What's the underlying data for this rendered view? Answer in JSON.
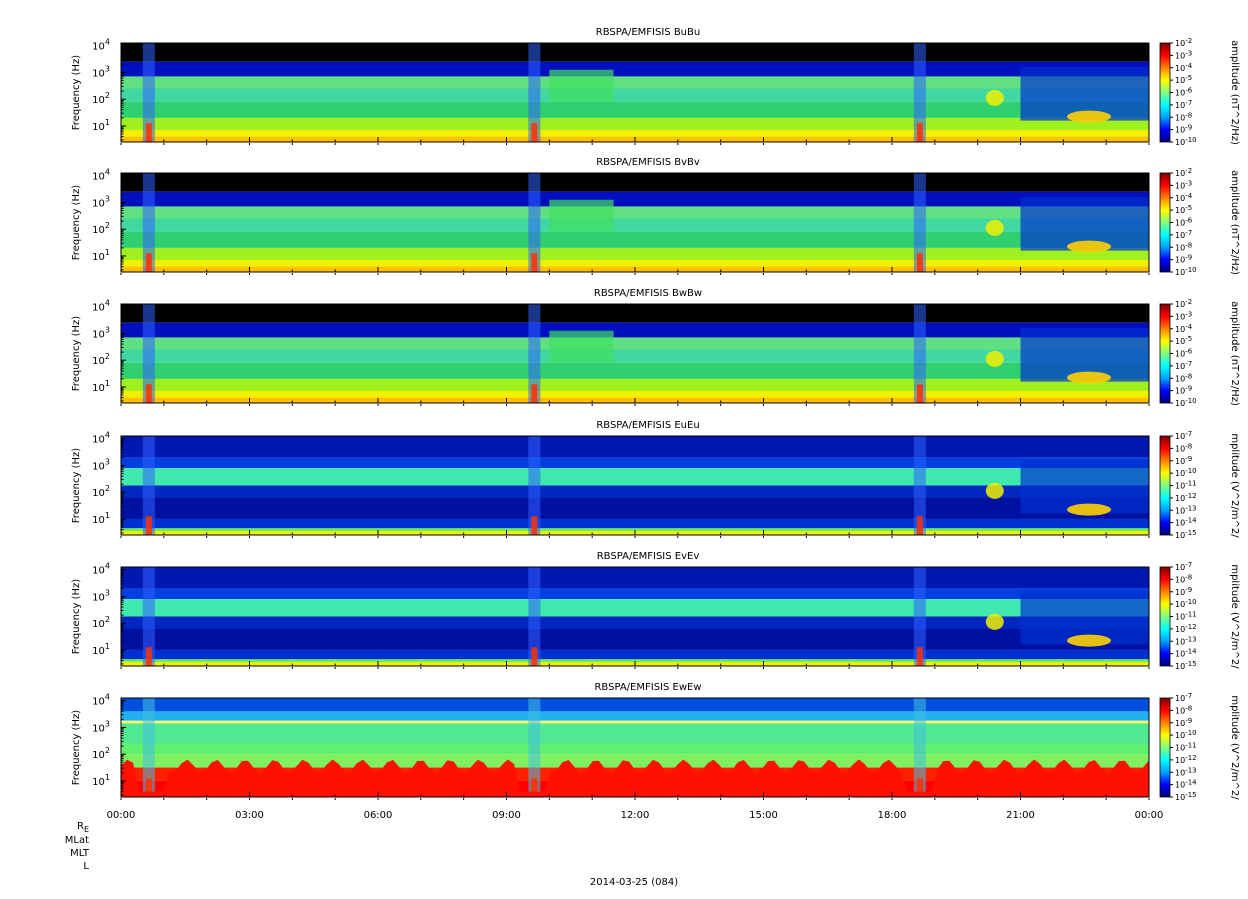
{
  "chart_data": [
    {
      "type": "heatmap",
      "title": "RBSPA/EMFISIS  BuBu",
      "ylabel": "Frequency (Hz)",
      "yscale": "log",
      "yticks": [
        "10",
        "10",
        "10",
        "10"
      ],
      "ytick_exponents": [
        "1",
        "2",
        "3",
        "4"
      ],
      "colorbar_label": "amplitude (nT^2/Hz)",
      "colorbar_ticks": [
        "10",
        "10",
        "10",
        "10",
        "10",
        "10",
        "10",
        "10",
        "10"
      ],
      "colorbar_exponents": [
        "-2",
        "-3",
        "-4",
        "-5",
        "-6",
        "-7",
        "-8",
        "-9",
        "-10"
      ],
      "colorbar_range": [
        -10,
        -2
      ],
      "kind": "B"
    },
    {
      "type": "heatmap",
      "title": "RBSPA/EMFISIS  BvBv",
      "ylabel": "Frequency (Hz)",
      "yscale": "log",
      "yticks": [
        "10",
        "10",
        "10",
        "10"
      ],
      "ytick_exponents": [
        "1",
        "2",
        "3",
        "4"
      ],
      "colorbar_label": "amplitude (nT^2/Hz)",
      "colorbar_ticks": [
        "10",
        "10",
        "10",
        "10",
        "10",
        "10",
        "10",
        "10",
        "10"
      ],
      "colorbar_exponents": [
        "-2",
        "-3",
        "-4",
        "-5",
        "-6",
        "-7",
        "-8",
        "-9",
        "-10"
      ],
      "colorbar_range": [
        -10,
        -2
      ],
      "kind": "B"
    },
    {
      "type": "heatmap",
      "title": "RBSPA/EMFISIS  BwBw",
      "ylabel": "Frequency (Hz)",
      "yscale": "log",
      "yticks": [
        "10",
        "10",
        "10",
        "10"
      ],
      "ytick_exponents": [
        "1",
        "2",
        "3",
        "4"
      ],
      "colorbar_label": "amplitude (nT^2/Hz)",
      "colorbar_ticks": [
        "10",
        "10",
        "10",
        "10",
        "10",
        "10",
        "10",
        "10",
        "10"
      ],
      "colorbar_exponents": [
        "-2",
        "-3",
        "-4",
        "-5",
        "-6",
        "-7",
        "-8",
        "-9",
        "-10"
      ],
      "colorbar_range": [
        -10,
        -2
      ],
      "kind": "B"
    },
    {
      "type": "heatmap",
      "title": "RBSPA/EMFISIS  EuEu",
      "ylabel": "Frequency (Hz)",
      "yscale": "log",
      "yticks": [
        "10",
        "10",
        "10",
        "10"
      ],
      "ytick_exponents": [
        "1",
        "2",
        "3",
        "4"
      ],
      "colorbar_label": "mplitude (V^2/m^2/",
      "colorbar_ticks": [
        "10",
        "10",
        "10",
        "10",
        "10",
        "10",
        "10",
        "10",
        "10"
      ],
      "colorbar_exponents": [
        "-7",
        "-8",
        "-9",
        "-10",
        "-11",
        "-12",
        "-13",
        "-14",
        "-15"
      ],
      "colorbar_range": [
        -15,
        -7
      ],
      "kind": "E"
    },
    {
      "type": "heatmap",
      "title": "RBSPA/EMFISIS  EvEv",
      "ylabel": "Frequency (Hz)",
      "yscale": "log",
      "yticks": [
        "10",
        "10",
        "10",
        "10"
      ],
      "ytick_exponents": [
        "1",
        "2",
        "3",
        "4"
      ],
      "colorbar_label": "mplitude (V^2/m^2/",
      "colorbar_ticks": [
        "10",
        "10",
        "10",
        "10",
        "10",
        "10",
        "10",
        "10",
        "10"
      ],
      "colorbar_exponents": [
        "-7",
        "-8",
        "-9",
        "-10",
        "-11",
        "-12",
        "-13",
        "-14",
        "-15"
      ],
      "colorbar_range": [
        -15,
        -7
      ],
      "kind": "E"
    },
    {
      "type": "heatmap",
      "title": "RBSPA/EMFISIS  EwEw",
      "ylabel": "Frequency (Hz)",
      "yscale": "log",
      "yticks": [
        "10",
        "10",
        "10",
        "10"
      ],
      "ytick_exponents": [
        "1",
        "2",
        "3",
        "4"
      ],
      "colorbar_label": "mplitude (V^2/m^2/",
      "colorbar_ticks": [
        "10",
        "10",
        "10",
        "10",
        "10",
        "10",
        "10",
        "10",
        "10"
      ],
      "colorbar_exponents": [
        "-7",
        "-8",
        "-9",
        "-10",
        "-11",
        "-12",
        "-13",
        "-14",
        "-15"
      ],
      "colorbar_range": [
        -15,
        -7
      ],
      "kind": "Ew"
    }
  ],
  "xaxis": {
    "ticks": [
      "00:00",
      "03:00",
      "06:00",
      "09:00",
      "12:00",
      "15:00",
      "18:00",
      "21:00",
      "00:00"
    ],
    "range_hours": [
      0,
      24
    ]
  },
  "ephemeris_labels": [
    "R",
    "MLat",
    "MLT",
    "L"
  ],
  "ephemeris_subscript": "E",
  "date_label": "2014-03-25 (084)"
}
